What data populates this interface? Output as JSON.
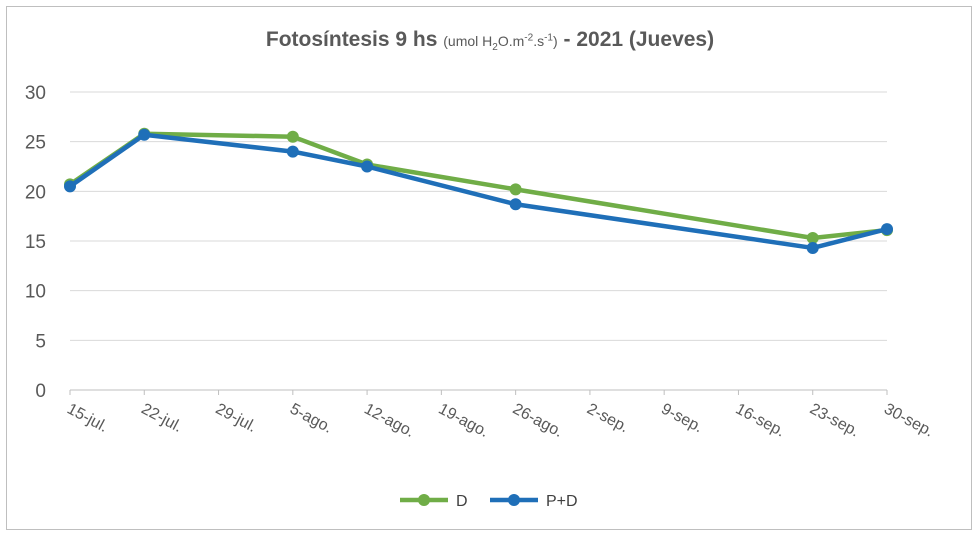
{
  "chart_data": {
    "type": "line",
    "title": {
      "main": "Fotosíntesis 9 hs",
      "unit_open": "(umol H",
      "unit_sub": "2",
      "unit_mid": "O.m",
      "unit_sup1": "-2",
      "unit_mid2": ".s",
      "unit_sup2": "-1",
      "unit_close": ")",
      "suffix": " - 2021 (Jueves)"
    },
    "x_ticks": [
      "15-jul.",
      "22-jul.",
      "29-jul.",
      "5-ago.",
      "12-ago.",
      "19-ago.",
      "26-ago.",
      "2-sep.",
      "9-sep.",
      "16-sep.",
      "23-sep.",
      "30-sep."
    ],
    "y_ticks": [
      "0",
      "5",
      "10",
      "15",
      "20",
      "25",
      "30"
    ],
    "ylim": [
      0,
      30
    ],
    "grid": true,
    "legend_position": "bottom",
    "series": [
      {
        "name": "D",
        "color": "#70ad47",
        "points": [
          [
            "15-jul.",
            20.7
          ],
          [
            "22-jul.",
            25.8
          ],
          [
            "5-ago.",
            25.5
          ],
          [
            "12-ago.",
            22.7
          ],
          [
            "26-ago.",
            20.2
          ],
          [
            "23-sep.",
            15.3
          ],
          [
            "30-sep.",
            16.1
          ]
        ]
      },
      {
        "name": "P+D",
        "color": "#1f6fb8",
        "points": [
          [
            "15-jul.",
            20.5
          ],
          [
            "22-jul.",
            25.7
          ],
          [
            "5-ago.",
            24.0
          ],
          [
            "12-ago.",
            22.5
          ],
          [
            "26-ago.",
            18.7
          ],
          [
            "23-sep.",
            14.3
          ],
          [
            "30-sep.",
            16.2
          ]
        ]
      }
    ]
  }
}
